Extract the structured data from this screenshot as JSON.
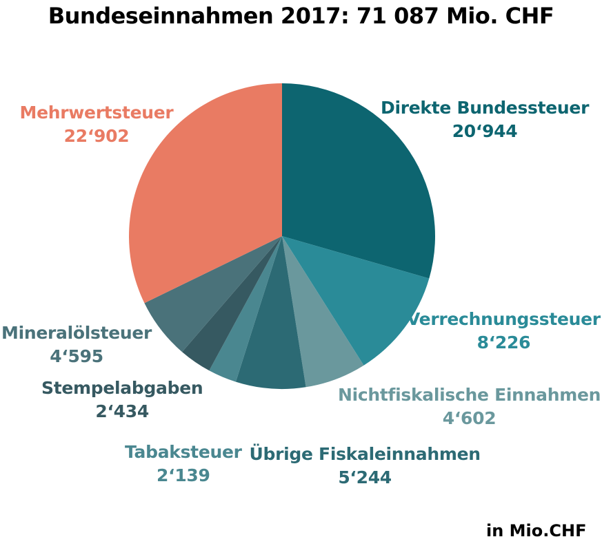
{
  "title": "Bundeseinnahmen 2017: 71 087 Mio. CHF",
  "unit_note": "in Mio.CHF",
  "chart_data": {
    "type": "pie",
    "title": "Bundeseinnahmen 2017: 71 087 Mio. CHF",
    "unit": "in Mio.CHF",
    "slices": [
      {
        "name": "Direkte Bundessteuer",
        "value": 20944,
        "value_label": "20‘944",
        "color": "#0d6570"
      },
      {
        "name": "Verrechnungssteuer",
        "value": 8226,
        "value_label": "8‘226",
        "color": "#2a8b98"
      },
      {
        "name": "Nichtfiskalische Einnahmen",
        "value": 4602,
        "value_label": "4‘602",
        "color": "#6a989d"
      },
      {
        "name": "Übrige Fiskaleinnahmen",
        "value": 5244,
        "value_label": "5‘244",
        "color": "#2c6a74"
      },
      {
        "name": "Tabaksteuer",
        "value": 2139,
        "value_label": "2‘139",
        "color": "#4a8790"
      },
      {
        "name": "Stempelabgaben",
        "value": 2434,
        "value_label": "2‘434",
        "color": "#365961"
      },
      {
        "name": "Mineralölsteuer",
        "value": 4595,
        "value_label": "4‘595",
        "color": "#4a727a"
      },
      {
        "name": "Mehrwertsteuer",
        "value": 22902,
        "value_label": "22‘902",
        "color": "#e97b63"
      }
    ],
    "label_colors": [
      "#0d6570",
      "#2a8b98",
      "#6a989d",
      "#2c6a74",
      "#4a8790",
      "#365961",
      "#4a727a",
      "#e97b63"
    ]
  }
}
